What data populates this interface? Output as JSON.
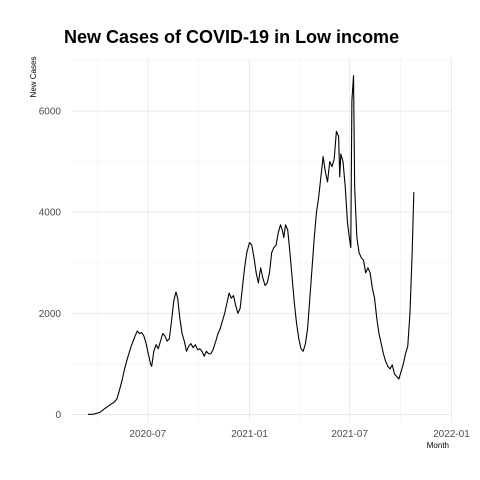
{
  "chart_data": {
    "type": "line",
    "title": "New Cases of COVID-19 in Low income",
    "xlabel": "Month",
    "ylabel": "New Cases",
    "xlim": [
      "2020-02-15",
      "2022-01-02"
    ],
    "ylim": [
      -150,
      7050
    ],
    "x_ticks": [
      "2020-07",
      "2021-01",
      "2021-07",
      "2022-01"
    ],
    "y_ticks": [
      0,
      2000,
      4000,
      6000
    ],
    "grid": true,
    "series": [
      {
        "name": "",
        "points": [
          [
            "2020-03-15",
            0
          ],
          [
            "2020-03-25",
            5
          ],
          [
            "2020-04-05",
            40
          ],
          [
            "2020-04-15",
            120
          ],
          [
            "2020-04-25",
            200
          ],
          [
            "2020-05-01",
            240
          ],
          [
            "2020-05-06",
            300
          ],
          [
            "2020-05-10",
            450
          ],
          [
            "2020-05-15",
            650
          ],
          [
            "2020-05-20",
            900
          ],
          [
            "2020-05-25",
            1100
          ],
          [
            "2020-06-01",
            1350
          ],
          [
            "2020-06-08",
            1550
          ],
          [
            "2020-06-12",
            1650
          ],
          [
            "2020-06-16",
            1600
          ],
          [
            "2020-06-20",
            1620
          ],
          [
            "2020-06-24",
            1550
          ],
          [
            "2020-06-28",
            1400
          ],
          [
            "2020-07-02",
            1200
          ],
          [
            "2020-07-06",
            1000
          ],
          [
            "2020-07-08",
            950
          ],
          [
            "2020-07-12",
            1250
          ],
          [
            "2020-07-16",
            1380
          ],
          [
            "2020-07-20",
            1300
          ],
          [
            "2020-07-24",
            1450
          ],
          [
            "2020-07-28",
            1600
          ],
          [
            "2020-08-01",
            1550
          ],
          [
            "2020-08-05",
            1450
          ],
          [
            "2020-08-09",
            1500
          ],
          [
            "2020-08-13",
            1850
          ],
          [
            "2020-08-17",
            2250
          ],
          [
            "2020-08-21",
            2420
          ],
          [
            "2020-08-24",
            2300
          ],
          [
            "2020-08-28",
            1900
          ],
          [
            "2020-09-01",
            1600
          ],
          [
            "2020-09-05",
            1450
          ],
          [
            "2020-09-09",
            1250
          ],
          [
            "2020-09-13",
            1350
          ],
          [
            "2020-09-17",
            1400
          ],
          [
            "2020-09-21",
            1320
          ],
          [
            "2020-09-25",
            1380
          ],
          [
            "2020-09-29",
            1280
          ],
          [
            "2020-10-03",
            1300
          ],
          [
            "2020-10-07",
            1250
          ],
          [
            "2020-10-11",
            1150
          ],
          [
            "2020-10-15",
            1250
          ],
          [
            "2020-10-19",
            1200
          ],
          [
            "2020-10-23",
            1200
          ],
          [
            "2020-10-27",
            1280
          ],
          [
            "2020-11-01",
            1450
          ],
          [
            "2020-11-05",
            1600
          ],
          [
            "2020-11-09",
            1700
          ],
          [
            "2020-11-13",
            1850
          ],
          [
            "2020-11-17",
            2000
          ],
          [
            "2020-11-21",
            2200
          ],
          [
            "2020-11-25",
            2400
          ],
          [
            "2020-11-29",
            2300
          ],
          [
            "2020-12-03",
            2350
          ],
          [
            "2020-12-07",
            2150
          ],
          [
            "2020-12-11",
            2000
          ],
          [
            "2020-12-15",
            2100
          ],
          [
            "2020-12-19",
            2500
          ],
          [
            "2020-12-23",
            2900
          ],
          [
            "2020-12-27",
            3200
          ],
          [
            "2021-01-01",
            3400
          ],
          [
            "2021-01-05",
            3350
          ],
          [
            "2021-01-09",
            3100
          ],
          [
            "2021-01-13",
            2800
          ],
          [
            "2021-01-17",
            2600
          ],
          [
            "2021-01-21",
            2900
          ],
          [
            "2021-01-25",
            2700
          ],
          [
            "2021-01-29",
            2550
          ],
          [
            "2021-02-02",
            2600
          ],
          [
            "2021-02-06",
            2800
          ],
          [
            "2021-02-10",
            3200
          ],
          [
            "2021-02-14",
            3300
          ],
          [
            "2021-02-18",
            3350
          ],
          [
            "2021-02-22",
            3600
          ],
          [
            "2021-02-26",
            3750
          ],
          [
            "2021-03-01",
            3650
          ],
          [
            "2021-03-04",
            3500
          ],
          [
            "2021-03-07",
            3750
          ],
          [
            "2021-03-11",
            3650
          ],
          [
            "2021-03-15",
            3200
          ],
          [
            "2021-03-19",
            2700
          ],
          [
            "2021-03-23",
            2200
          ],
          [
            "2021-03-27",
            1800
          ],
          [
            "2021-03-31",
            1500
          ],
          [
            "2021-04-04",
            1300
          ],
          [
            "2021-04-08",
            1250
          ],
          [
            "2021-04-12",
            1400
          ],
          [
            "2021-04-16",
            1700
          ],
          [
            "2021-04-20",
            2300
          ],
          [
            "2021-04-24",
            2900
          ],
          [
            "2021-04-28",
            3500
          ],
          [
            "2021-05-02",
            4000
          ],
          [
            "2021-05-06",
            4300
          ],
          [
            "2021-05-10",
            4700
          ],
          [
            "2021-05-14",
            5100
          ],
          [
            "2021-05-18",
            4800
          ],
          [
            "2021-05-22",
            4600
          ],
          [
            "2021-05-26",
            5000
          ],
          [
            "2021-05-30",
            4900
          ],
          [
            "2021-06-03",
            5050
          ],
          [
            "2021-06-07",
            5600
          ],
          [
            "2021-06-11",
            5500
          ],
          [
            "2021-06-13",
            4700
          ],
          [
            "2021-06-15",
            5150
          ],
          [
            "2021-06-19",
            5000
          ],
          [
            "2021-06-23",
            4500
          ],
          [
            "2021-06-27",
            3800
          ],
          [
            "2021-07-01",
            3450
          ],
          [
            "2021-07-03",
            3300
          ],
          [
            "2021-07-05",
            6200
          ],
          [
            "2021-07-08",
            6700
          ],
          [
            "2021-07-10",
            4500
          ],
          [
            "2021-07-14",
            3500
          ],
          [
            "2021-07-18",
            3200
          ],
          [
            "2021-07-22",
            3100
          ],
          [
            "2021-07-26",
            3050
          ],
          [
            "2021-07-30",
            2800
          ],
          [
            "2021-08-03",
            2900
          ],
          [
            "2021-08-07",
            2800
          ],
          [
            "2021-08-11",
            2500
          ],
          [
            "2021-08-15",
            2300
          ],
          [
            "2021-08-19",
            1900
          ],
          [
            "2021-08-23",
            1600
          ],
          [
            "2021-08-27",
            1400
          ],
          [
            "2021-08-31",
            1200
          ],
          [
            "2021-09-04",
            1050
          ],
          [
            "2021-09-08",
            950
          ],
          [
            "2021-09-12",
            900
          ],
          [
            "2021-09-16",
            980
          ],
          [
            "2021-09-20",
            800
          ],
          [
            "2021-09-24",
            750
          ],
          [
            "2021-09-28",
            700
          ],
          [
            "2021-10-02",
            850
          ],
          [
            "2021-10-06",
            1000
          ],
          [
            "2021-10-10",
            1200
          ],
          [
            "2021-10-14",
            1350
          ],
          [
            "2021-10-18",
            2000
          ],
          [
            "2021-10-22",
            3200
          ],
          [
            "2021-10-25",
            4400
          ]
        ]
      }
    ]
  }
}
